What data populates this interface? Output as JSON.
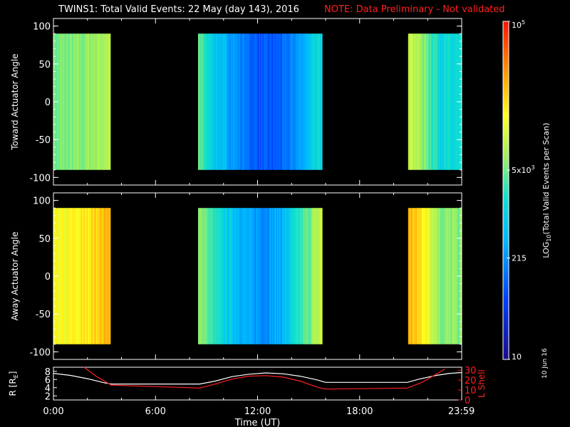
{
  "header": {
    "title": "TWINS1: Total Valid Events: 22 May (day 143), 2016",
    "note": "NOTE: Data Preliminary - Not validated",
    "note_color": "#ff2020"
  },
  "stamp": "10 Jun 16",
  "chart_data": [
    {
      "type": "heatmap",
      "ylabel": "Toward Actuator Angle",
      "ylim": [
        -110,
        110
      ],
      "yticks": [
        100,
        50,
        0,
        -50,
        -100
      ],
      "xlim": [
        0,
        24
      ],
      "angle_range": [
        -90,
        90
      ],
      "data_intervals": [
        [
          0,
          3.35
        ],
        [
          8.5,
          15.8
        ],
        [
          20.85,
          24
        ]
      ],
      "log_level_profile": [
        {
          "t": 0,
          "v": 0.56
        },
        {
          "t": 1.5,
          "v": 0.57
        },
        {
          "t": 3.0,
          "v": 0.62
        },
        {
          "t": 8.5,
          "v": 0.55
        },
        {
          "t": 9.5,
          "v": 0.4
        },
        {
          "t": 10.5,
          "v": 0.32
        },
        {
          "t": 11.5,
          "v": 0.24
        },
        {
          "t": 12.5,
          "v": 0.2
        },
        {
          "t": 13.5,
          "v": 0.23
        },
        {
          "t": 14.5,
          "v": 0.32
        },
        {
          "t": 15.8,
          "v": 0.48
        },
        {
          "t": 20.85,
          "v": 0.68
        },
        {
          "t": 21.8,
          "v": 0.58
        },
        {
          "t": 22.8,
          "v": 0.45
        },
        {
          "t": 24,
          "v": 0.45
        }
      ]
    },
    {
      "type": "heatmap",
      "ylabel": "Away Actuator Angle",
      "ylim": [
        -110,
        110
      ],
      "yticks": [
        100,
        50,
        0,
        -50,
        -100
      ],
      "xlim": [
        0,
        24
      ],
      "angle_range": [
        -90,
        90
      ],
      "data_intervals": [
        [
          0,
          3.35
        ],
        [
          8.5,
          15.8
        ],
        [
          20.85,
          24
        ]
      ],
      "log_level_profile": [
        {
          "t": 0,
          "v": 0.7
        },
        {
          "t": 1.5,
          "v": 0.73
        },
        {
          "t": 3.0,
          "v": 0.8
        },
        {
          "t": 8.5,
          "v": 0.62
        },
        {
          "t": 9.5,
          "v": 0.48
        },
        {
          "t": 10.5,
          "v": 0.4
        },
        {
          "t": 11.5,
          "v": 0.32
        },
        {
          "t": 12.5,
          "v": 0.3
        },
        {
          "t": 13.5,
          "v": 0.36
        },
        {
          "t": 14.5,
          "v": 0.5
        },
        {
          "t": 15.8,
          "v": 0.66
        },
        {
          "t": 20.85,
          "v": 0.82
        },
        {
          "t": 21.8,
          "v": 0.74
        },
        {
          "t": 22.8,
          "v": 0.58
        },
        {
          "t": 24,
          "v": 0.58
        }
      ]
    },
    {
      "type": "line",
      "ylabel": "R [R",
      "ylabel_sub": "E",
      "ylabel_close": "]",
      "ylim": [
        1,
        9
      ],
      "yticks": [
        8,
        6,
        4,
        2
      ],
      "y2label": "L Shell",
      "y2lim": [
        0,
        33
      ],
      "y2ticks": [
        30,
        20,
        10,
        0
      ],
      "y2_color": "#ff2020",
      "xlim": [
        0,
        24
      ],
      "xticks": [
        "0:00",
        "6:00",
        "12:00",
        "18:00",
        "23:59"
      ],
      "xlabel": "Time (UT)",
      "series": [
        {
          "axis": "left",
          "color": "#ffffff",
          "points": [
            [
              0,
              7.5
            ],
            [
              1,
              7.0
            ],
            [
              2,
              6.2
            ],
            [
              3,
              5.2
            ],
            [
              3.4,
              4.9
            ],
            [
              8.6,
              4.9
            ],
            [
              9.5,
              5.6
            ],
            [
              10.5,
              6.7
            ],
            [
              11.5,
              7.3
            ],
            [
              12.5,
              7.6
            ],
            [
              13.5,
              7.4
            ],
            [
              14.5,
              6.8
            ],
            [
              15.5,
              5.9
            ],
            [
              16,
              5.3
            ],
            [
              20.8,
              5.3
            ],
            [
              21.5,
              6.1
            ],
            [
              22.5,
              7.0
            ],
            [
              23.3,
              7.5
            ],
            [
              24,
              7.7
            ]
          ]
        },
        {
          "axis": "right",
          "color": "#ff2020",
          "points": [
            [
              1.8,
              33
            ],
            [
              2.5,
              24
            ],
            [
              3.4,
              15
            ],
            [
              8.6,
              12
            ],
            [
              9.5,
              16
            ],
            [
              10.5,
              21
            ],
            [
              11.5,
              24
            ],
            [
              12.5,
              24.5
            ],
            [
              13.5,
              23
            ],
            [
              14.5,
              19
            ],
            [
              15.5,
              13
            ],
            [
              16,
              11
            ],
            [
              20.8,
              12
            ],
            [
              21.7,
              18
            ],
            [
              22.6,
              27
            ],
            [
              23.0,
              31
            ]
          ]
        }
      ]
    },
    {
      "type": "heatmap",
      "role": "colorbar",
      "label": "LOG",
      "label_sub": "10",
      "label_rest": "(Total Valid Events per Scan)",
      "ticks": [
        {
          "pos": 1.0,
          "base": "10",
          "sup": "5"
        },
        {
          "pos": 0.56,
          "base": "5x10",
          "sup": "3"
        },
        {
          "pos": 0.3,
          "base": "215",
          "sup": ""
        },
        {
          "pos": 0.0,
          "base": "10",
          "sup": ""
        }
      ]
    }
  ]
}
